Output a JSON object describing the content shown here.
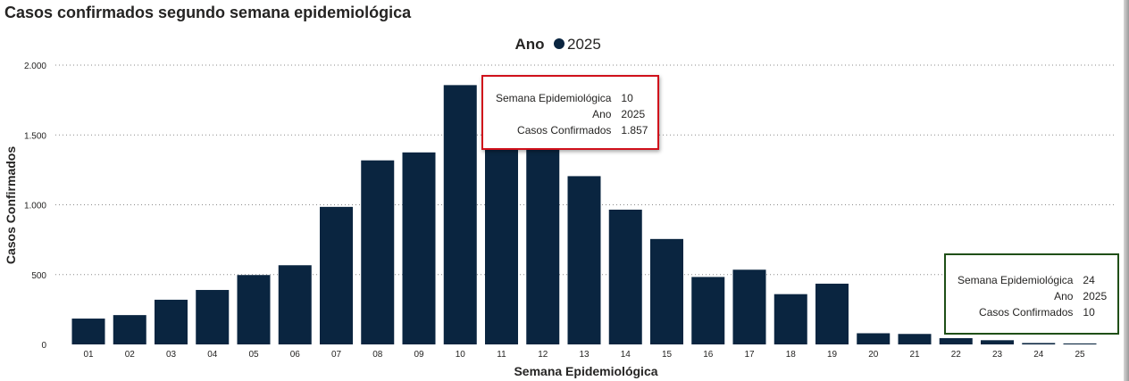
{
  "title": "Casos confirmados segundo semana epidemiológica",
  "colors": {
    "bar": "#0a2540",
    "grid": "#8a8a8a",
    "tooltip_red_border": "#d0101b",
    "tooltip_green_border": "#1f4f17"
  },
  "chart_data": {
    "type": "bar",
    "legend": {
      "title": "Ano",
      "items": [
        {
          "label": "2025",
          "color": "#0a2540"
        }
      ]
    },
    "xlabel": "Semana Epidemiológica",
    "ylabel": "Casos Confirmados",
    "ylim": [
      0,
      2000
    ],
    "yticks": [
      0,
      500,
      1000,
      1500,
      2000
    ],
    "ytick_labels": [
      "0",
      "500",
      "1.000",
      "1.500",
      "2.000"
    ],
    "grid": "horizontal dotted",
    "categories": [
      "01",
      "02",
      "03",
      "04",
      "05",
      "06",
      "07",
      "08",
      "09",
      "10",
      "11",
      "12",
      "13",
      "14",
      "15",
      "16",
      "17",
      "18",
      "19",
      "20",
      "21",
      "22",
      "23",
      "24",
      "25"
    ],
    "series": [
      {
        "name": "2025",
        "values": [
          185,
          210,
          320,
          390,
          497,
          567,
          985,
          1318,
          1375,
          1857,
          1450,
          1450,
          1205,
          965,
          755,
          483,
          535,
          360,
          435,
          80,
          75,
          45,
          30,
          10,
          7
        ]
      }
    ]
  },
  "tooltips": [
    {
      "rows": [
        {
          "key": "Semana Epidemiológica",
          "value": "10"
        },
        {
          "key": "Ano",
          "value": "2025"
        },
        {
          "key": "Casos Confirmados",
          "value": "1.857"
        }
      ]
    },
    {
      "rows": [
        {
          "key": "Semana Epidemiológica",
          "value": "24"
        },
        {
          "key": "Ano",
          "value": "2025"
        },
        {
          "key": "Casos Confirmados",
          "value": "10"
        }
      ]
    }
  ]
}
